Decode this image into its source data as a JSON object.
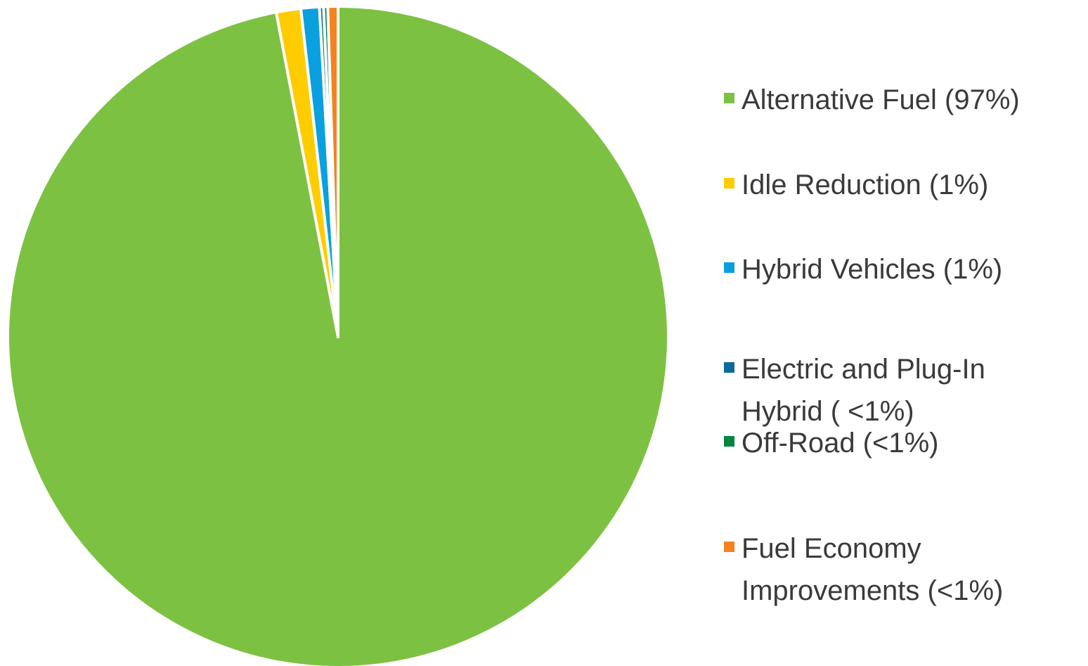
{
  "chart_data": {
    "type": "pie",
    "categories": [
      "Alternative Fuel (97%)",
      "Idle Reduction (1%)",
      "Hybrid Vehicles (1%)",
      "Electric and Plug-In Hybrid ( <1%)",
      "Off-Road (<1%)",
      "Fuel Economy Improvements (<1%)"
    ],
    "values": [
      97.0,
      1.2,
      0.9,
      0.2,
      0.2,
      0.5
    ],
    "colors": [
      "#7dc142",
      "#ffcc00",
      "#0aa0e0",
      "#0b6a9b",
      "#00853f",
      "#f58220"
    ],
    "legend": "right"
  }
}
